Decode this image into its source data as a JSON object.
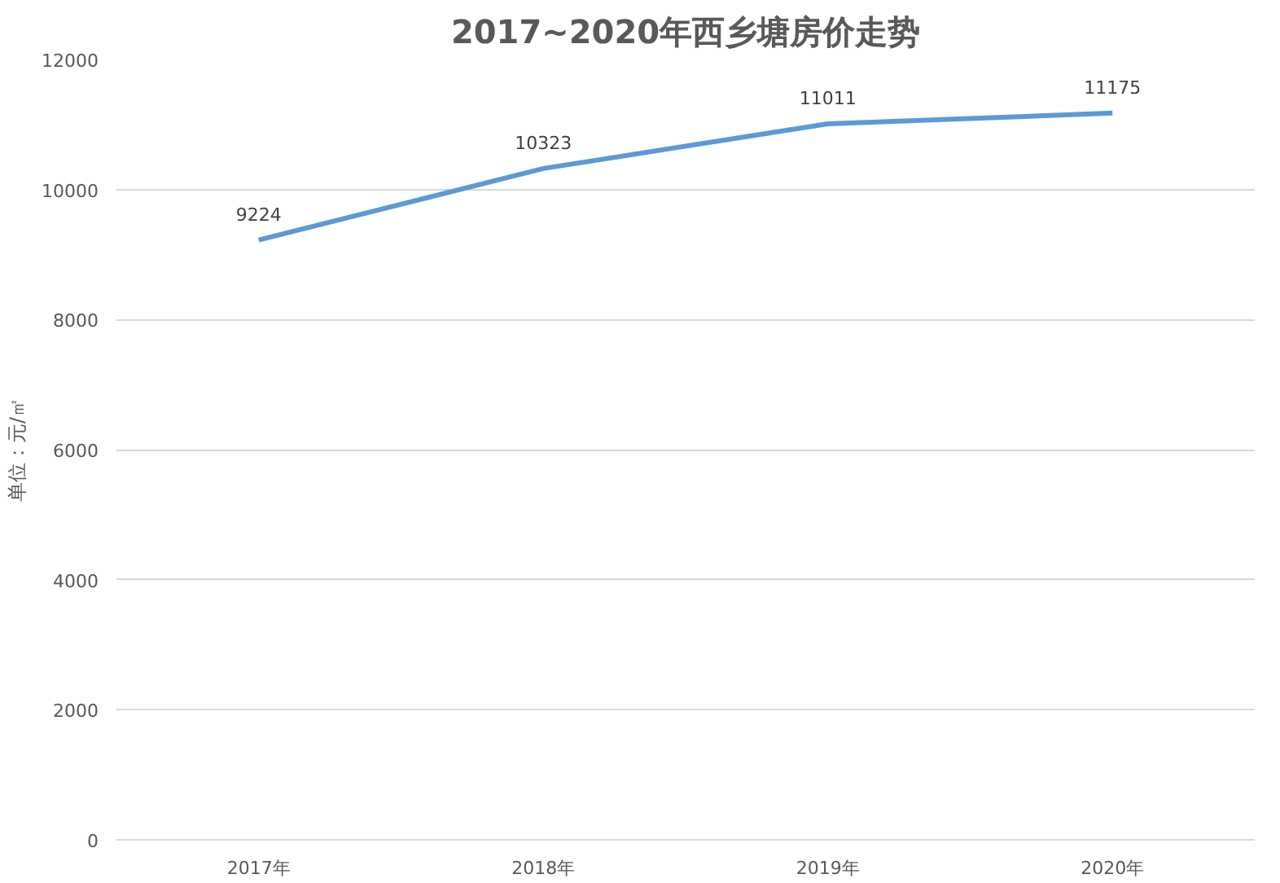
{
  "chart_data": {
    "type": "line",
    "title": "2017~2020年西乡塘房价走势",
    "ylabel": "单位：元/㎡",
    "categories": [
      "2017年",
      "2018年",
      "2019年",
      "2020年"
    ],
    "series": [
      {
        "color": "#5b9bd5",
        "values": [
          9224,
          10323,
          11011,
          11175
        ]
      }
    ],
    "ylim": [
      0,
      12000
    ],
    "yticks": [
      0,
      2000,
      4000,
      6000,
      8000,
      10000,
      12000
    ],
    "grid": "y",
    "data_labels": true,
    "marker": "none",
    "line_style": "solid"
  }
}
